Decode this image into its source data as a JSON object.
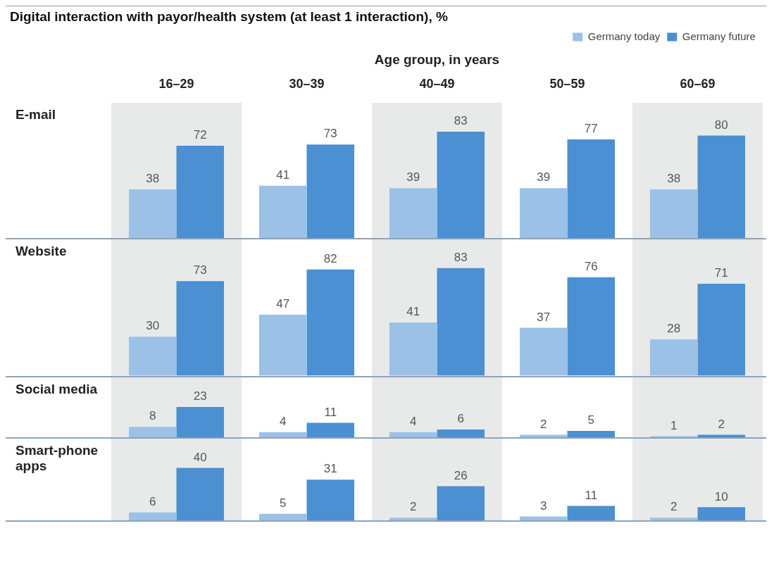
{
  "chart_data": [
    {
      "type": "bar",
      "title": "Digital interaction with payor/health system (at least 1 interaction), %",
      "xlabel": "Age group, in years",
      "ylabel": "E-mail",
      "categories": [
        "16–29",
        "30–39",
        "40–49",
        "50–59",
        "60–69"
      ],
      "legend": "top right",
      "data_labels": true,
      "series": [
        {
          "name": "Germany today",
          "color": "#9bc1e6",
          "values": [
            38,
            41,
            39,
            39,
            38
          ]
        },
        {
          "name": "Germany future",
          "color": "#4a90d2",
          "values": [
            72,
            73,
            83,
            77,
            80
          ]
        }
      ]
    },
    {
      "type": "bar",
      "ylabel": "Website",
      "categories": [
        null,
        null,
        null,
        null,
        null
      ],
      "tick_labels": false,
      "data_labels": true,
      "series": [
        {
          "color": "#9bc1e6",
          "values": [
            30,
            47,
            41,
            37,
            28
          ]
        },
        {
          "color": "#4a90d2",
          "values": [
            73,
            82,
            83,
            76,
            71
          ]
        }
      ]
    },
    {
      "type": "bar",
      "ylabel": "Social media",
      "categories": [
        null,
        null,
        null,
        null,
        null
      ],
      "tick_labels": false,
      "data_labels": true,
      "series": [
        {
          "color": "#9bc1e6",
          "values": [
            8,
            4,
            4,
            2,
            1
          ]
        },
        {
          "color": "#4a90d2",
          "values": [
            23,
            11,
            6,
            5,
            2
          ]
        }
      ]
    },
    {
      "type": "bar",
      "ylabel": "Smart-phone apps",
      "categories": [
        null,
        null,
        null,
        null,
        null
      ],
      "tick_labels": false,
      "data_labels": true,
      "series": [
        {
          "color": "#9bc1e6",
          "values": [
            6,
            5,
            2,
            3,
            2
          ]
        },
        {
          "color": "#4a90d2",
          "values": [
            40,
            31,
            26,
            11,
            10
          ]
        }
      ]
    }
  ]
}
